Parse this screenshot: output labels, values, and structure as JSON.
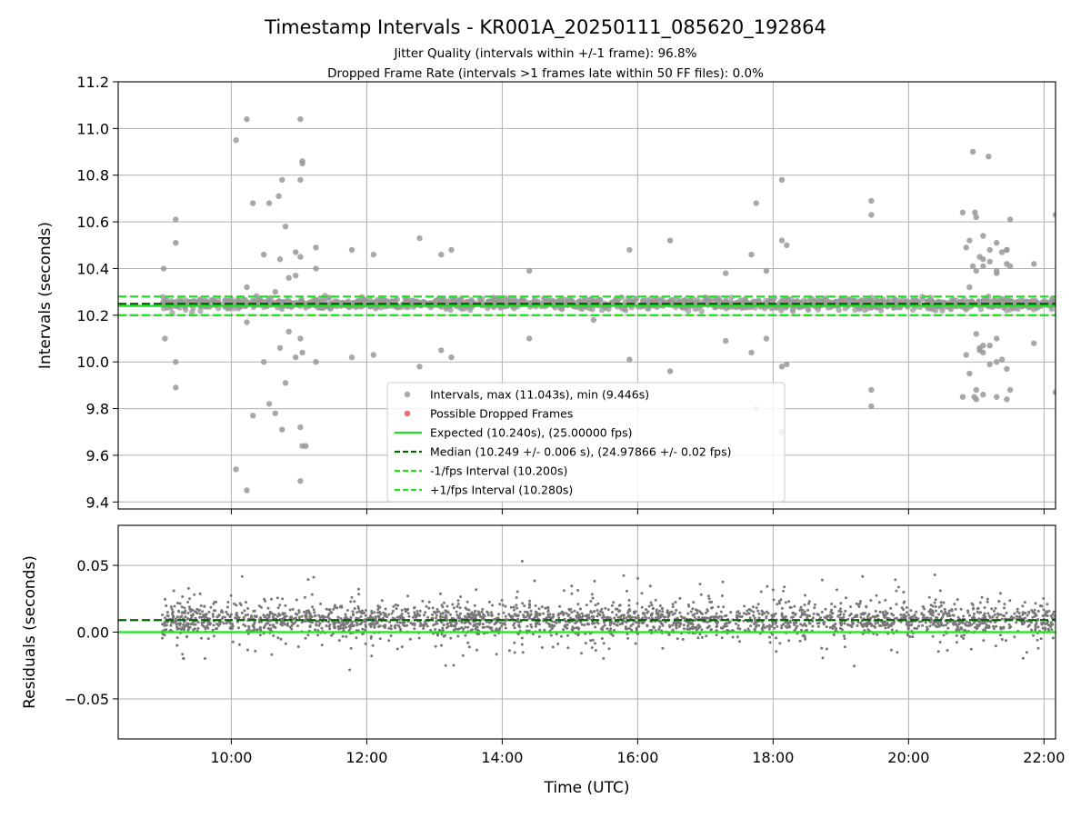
{
  "chart_data": [
    {
      "type": "scatter",
      "title": "Timestamp Intervals - KR001A_20250111_085620_192864",
      "subtitle_lines": [
        "Jitter Quality (intervals within +/-1 frame): 96.8%",
        "Dropped Frame Rate (intervals >1 frames late within 50 FF files): 0.0%"
      ],
      "xlabel": "",
      "ylabel": "Intervals (seconds)",
      "ylim": [
        9.37,
        11.2
      ],
      "xlim_hours": [
        8.33,
        22.17
      ],
      "y_ticks": [
        "9.4",
        "9.6",
        "9.8",
        "10.0",
        "10.2",
        "10.4",
        "10.6",
        "10.8",
        "11.0",
        "11.2"
      ],
      "y_tick_values": [
        9.4,
        9.6,
        9.8,
        10.0,
        10.2,
        10.4,
        10.6,
        10.8,
        11.0,
        11.2
      ],
      "grid": true,
      "legend_placement": "lower center",
      "series": [
        {
          "name": "Intervals, max (11.043s), min (9.446s)",
          "color": "#999999",
          "outliers": [
            [
              9.0,
              10.4
            ],
            [
              9.18,
              10.61
            ],
            [
              9.18,
              10.51
            ],
            [
              9.02,
              10.1
            ],
            [
              9.18,
              10.0
            ],
            [
              9.18,
              9.89
            ],
            [
              10.07,
              10.95
            ],
            [
              10.07,
              9.54
            ],
            [
              10.23,
              11.04
            ],
            [
              10.23,
              9.45
            ],
            [
              10.23,
              10.32
            ],
            [
              10.23,
              10.17
            ],
            [
              10.32,
              10.68
            ],
            [
              10.32,
              9.77
            ],
            [
              10.48,
              10.46
            ],
            [
              10.48,
              10.0
            ],
            [
              10.56,
              10.68
            ],
            [
              10.56,
              9.82
            ],
            [
              10.65,
              10.3
            ],
            [
              10.65,
              9.78
            ],
            [
              10.7,
              10.71
            ],
            [
              10.75,
              10.78
            ],
            [
              10.72,
              10.44
            ],
            [
              10.72,
              10.06
            ],
            [
              10.75,
              9.71
            ],
            [
              10.8,
              10.58
            ],
            [
              10.8,
              9.91
            ],
            [
              10.85,
              10.36
            ],
            [
              10.85,
              10.13
            ],
            [
              10.95,
              10.47
            ],
            [
              10.95,
              10.37
            ],
            [
              10.95,
              10.02
            ],
            [
              11.02,
              11.04
            ],
            [
              11.02,
              10.78
            ],
            [
              11.02,
              10.45
            ],
            [
              11.02,
              10.1
            ],
            [
              11.02,
              9.72
            ],
            [
              11.05,
              10.85
            ],
            [
              11.05,
              10.86
            ],
            [
              11.05,
              10.04
            ],
            [
              11.05,
              9.64
            ],
            [
              11.1,
              9.64
            ],
            [
              11.02,
              9.49
            ],
            [
              11.25,
              10.49
            ],
            [
              11.25,
              10.4
            ],
            [
              11.25,
              10.0
            ],
            [
              11.78,
              10.48
            ],
            [
              11.78,
              10.02
            ],
            [
              12.1,
              10.46
            ],
            [
              12.1,
              10.03
            ],
            [
              12.78,
              10.53
            ],
            [
              12.78,
              9.98
            ],
            [
              13.1,
              10.46
            ],
            [
              13.1,
              10.05
            ],
            [
              13.25,
              10.48
            ],
            [
              13.25,
              10.02
            ],
            [
              14.4,
              10.39
            ],
            [
              14.4,
              10.1
            ],
            [
              15.35,
              10.18
            ],
            [
              15.88,
              10.48
            ],
            [
              15.88,
              10.01
            ],
            [
              16.48,
              10.52
            ],
            [
              16.48,
              9.96
            ],
            [
              17.3,
              10.38
            ],
            [
              17.3,
              10.09
            ],
            [
              17.68,
              10.46
            ],
            [
              17.68,
              10.04
            ],
            [
              17.75,
              10.68
            ],
            [
              17.75,
              9.8
            ],
            [
              17.9,
              10.39
            ],
            [
              17.9,
              10.1
            ],
            [
              18.13,
              10.78
            ],
            [
              18.13,
              10.52
            ],
            [
              18.13,
              9.98
            ],
            [
              18.13,
              9.7
            ],
            [
              18.2,
              10.5
            ],
            [
              18.2,
              9.99
            ],
            [
              19.45,
              10.69
            ],
            [
              19.45,
              10.63
            ],
            [
              19.45,
              9.88
            ],
            [
              19.45,
              9.81
            ],
            [
              20.8,
              10.64
            ],
            [
              20.8,
              9.85
            ],
            [
              20.85,
              10.49
            ],
            [
              20.85,
              10.03
            ],
            [
              20.9,
              10.52
            ],
            [
              20.9,
              9.95
            ],
            [
              20.9,
              10.32
            ],
            [
              20.95,
              10.9
            ],
            [
              20.95,
              10.41
            ],
            [
              20.98,
              10.64
            ],
            [
              21.0,
              10.62
            ],
            [
              21.0,
              10.39
            ],
            [
              21.0,
              10.12
            ],
            [
              21.0,
              9.88
            ],
            [
              21.0,
              9.84
            ],
            [
              20.97,
              9.85
            ],
            [
              21.05,
              10.45
            ],
            [
              21.05,
              10.06
            ],
            [
              21.05,
              10.05
            ],
            [
              21.1,
              10.54
            ],
            [
              21.1,
              10.44
            ],
            [
              21.1,
              10.41
            ],
            [
              21.1,
              10.07
            ],
            [
              21.1,
              10.04
            ],
            [
              21.1,
              9.86
            ],
            [
              21.18,
              10.88
            ],
            [
              21.2,
              10.48
            ],
            [
              21.2,
              10.43
            ],
            [
              21.2,
              10.07
            ],
            [
              21.2,
              9.99
            ],
            [
              21.3,
              10.51
            ],
            [
              21.3,
              10.39
            ],
            [
              21.3,
              10.38
            ],
            [
              21.3,
              10.1
            ],
            [
              21.3,
              10.0
            ],
            [
              21.3,
              9.85
            ],
            [
              21.38,
              10.47
            ],
            [
              21.38,
              10.01
            ],
            [
              21.45,
              10.48
            ],
            [
              21.45,
              10.48
            ],
            [
              21.45,
              10.42
            ],
            [
              21.45,
              9.97
            ],
            [
              21.45,
              9.84
            ],
            [
              21.5,
              10.61
            ],
            [
              21.5,
              9.88
            ],
            [
              21.5,
              10.41
            ],
            [
              21.85,
              10.42
            ],
            [
              21.85,
              10.08
            ],
            [
              22.17,
              10.63
            ],
            [
              22.17,
              9.87
            ],
            [
              10.9,
              10.25
            ]
          ]
        },
        {
          "name": "Possible Dropped Frames",
          "color": "#e8483f"
        },
        {
          "name": "Expected (10.240s), (25.00000 fps)",
          "value": 10.24,
          "color": "#22e022",
          "style": "solid"
        },
        {
          "name": "Median (10.249 +/- 0.006 s), (24.97866 +/- 0.02 fps)",
          "value": 10.249,
          "color": "#006400",
          "style": "dashed"
        },
        {
          "name": "-1/fps Interval (10.200s)",
          "value": 10.2,
          "color": "#22e022",
          "style": "dashed"
        },
        {
          "name": "+1/fps Interval (10.280s)",
          "value": 10.28,
          "color": "#22e022",
          "style": "dashed"
        }
      ],
      "band": {
        "x_start_hours": 8.98,
        "x_end_hours": 22.17,
        "low": 10.2,
        "high": 10.28
      }
    },
    {
      "type": "scatter",
      "title": "",
      "xlabel": "Time (UTC)",
      "ylabel": "Residuals (seconds)",
      "ylim": [
        -0.08,
        0.08
      ],
      "xlim_hours": [
        8.33,
        22.17
      ],
      "y_ticks": [
        "−0.05",
        "0.00",
        "0.05"
      ],
      "y_tick_values": [
        -0.05,
        0.0,
        0.05
      ],
      "x_ticks": [
        "10:00",
        "12:00",
        "14:00",
        "16:00",
        "18:00",
        "20:00",
        "22:00"
      ],
      "x_tick_values_hours": [
        10,
        12,
        14,
        16,
        18,
        20,
        22
      ],
      "grid": true,
      "series": [
        {
          "name": "Residuals",
          "color": "#777777",
          "x_range_hours": [
            8.98,
            22.17
          ],
          "center": 0.009,
          "spread": 0.012
        },
        {
          "name": "Expected",
          "value": 0.0,
          "color": "#22e022",
          "style": "solid"
        },
        {
          "name": "Median",
          "value": 0.009,
          "color": "#006400",
          "style": "dashed"
        }
      ]
    }
  ]
}
